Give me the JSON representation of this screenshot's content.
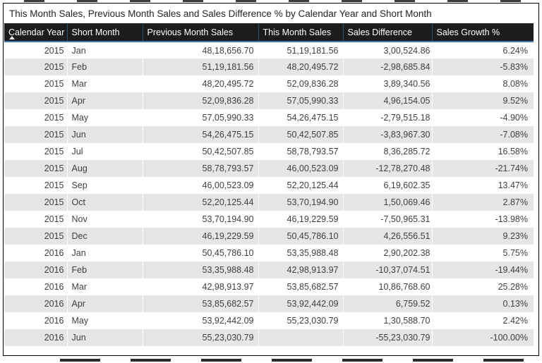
{
  "chart_data": {
    "type": "table",
    "title": "This Month Sales, Previous Month Sales and Sales Difference % by Calendar Year and Short Month",
    "columns": [
      "Calendar Year",
      "Short Month",
      "Previous Month Sales",
      "This Month Sales",
      "Sales Difference",
      "Sales Growth %"
    ],
    "column_alignments": [
      "right",
      "left",
      "right",
      "right",
      "right",
      "right"
    ],
    "sort": {
      "column": "Calendar Year",
      "direction": "ascending"
    },
    "rows": [
      [
        "2015",
        "Jan",
        "48,18,656.70",
        "51,19,181.56",
        "3,00,524.86",
        "6.24%"
      ],
      [
        "2015",
        "Feb",
        "51,19,181.56",
        "48,20,495.72",
        "-2,98,685.84",
        "-5.83%"
      ],
      [
        "2015",
        "Mar",
        "48,20,495.72",
        "52,09,836.28",
        "3,89,340.56",
        "8.08%"
      ],
      [
        "2015",
        "Apr",
        "52,09,836.28",
        "57,05,990.33",
        "4,96,154.05",
        "9.52%"
      ],
      [
        "2015",
        "May",
        "57,05,990.33",
        "54,26,475.15",
        "-2,79,515.18",
        "-4.90%"
      ],
      [
        "2015",
        "Jun",
        "54,26,475.15",
        "50,42,507.85",
        "-3,83,967.30",
        "-7.08%"
      ],
      [
        "2015",
        "Jul",
        "50,42,507.85",
        "58,78,793.57",
        "8,36,285.72",
        "16.58%"
      ],
      [
        "2015",
        "Aug",
        "58,78,793.57",
        "46,00,523.09",
        "-12,78,270.48",
        "-21.74%"
      ],
      [
        "2015",
        "Sep",
        "46,00,523.09",
        "52,20,125.44",
        "6,19,602.35",
        "13.47%"
      ],
      [
        "2015",
        "Oct",
        "52,20,125.44",
        "53,70,194.90",
        "1,50,069.46",
        "2.87%"
      ],
      [
        "2015",
        "Nov",
        "53,70,194.90",
        "46,19,229.59",
        "-7,50,965.31",
        "-13.98%"
      ],
      [
        "2015",
        "Dec",
        "46,19,229.59",
        "50,45,786.10",
        "4,26,556.51",
        "9.23%"
      ],
      [
        "2016",
        "Jan",
        "50,45,786.10",
        "53,35,988.48",
        "2,90,202.38",
        "5.75%"
      ],
      [
        "2016",
        "Feb",
        "53,35,988.48",
        "42,98,913.97",
        "-10,37,074.51",
        "-19.44%"
      ],
      [
        "2016",
        "Mar",
        "42,98,913.97",
        "53,85,682.57",
        "10,86,768.60",
        "25.28%"
      ],
      [
        "2016",
        "Apr",
        "53,85,682.57",
        "53,92,442.09",
        "6,759.52",
        "0.13%"
      ],
      [
        "2016",
        "May",
        "53,92,442.09",
        "55,23,030.79",
        "1,30,588.70",
        "2.42%"
      ],
      [
        "2016",
        "Jun",
        "55,23,030.79",
        "",
        "-55,23,030.79",
        "-100.00%"
      ]
    ]
  },
  "colors": {
    "header_bg": "#1c1c1c",
    "header_text": "#ffffff",
    "header_separator": "#31516e",
    "accent_blue": "#4378b3",
    "row_alt_bg": "#e6e6e6",
    "body_text": "#3f3f3f",
    "title_text": "#252423",
    "frame_border": "#000000"
  }
}
